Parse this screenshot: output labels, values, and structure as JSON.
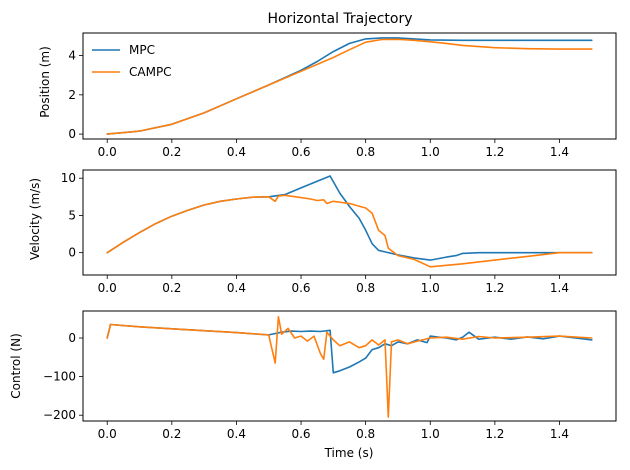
{
  "chart_data": [
    {
      "type": "line",
      "title": "Horizontal Trajectory",
      "xlabel": "",
      "ylabel": "Position (m)",
      "xlim": [
        -0.075,
        1.575
      ],
      "ylim": [
        -0.25,
        5.15
      ],
      "xticks": [
        0.0,
        0.2,
        0.4,
        0.6,
        0.8,
        1.0,
        1.2,
        1.4
      ],
      "xtick_labels": [
        "0.0",
        "0.2",
        "0.4",
        "0.6",
        "0.8",
        "1.0",
        "1.2",
        "1.4"
      ],
      "yticks": [
        0,
        2,
        4
      ],
      "ytick_labels": [
        "0",
        "2",
        "4"
      ],
      "grid": false,
      "legend": {
        "position": "top-left",
        "entries": [
          "MPC",
          "CAMPC"
        ]
      },
      "series": [
        {
          "name": "MPC",
          "color": "#1f77b4",
          "x": [
            0,
            0.1,
            0.2,
            0.3,
            0.4,
            0.5,
            0.6,
            0.65,
            0.7,
            0.75,
            0.8,
            0.85,
            0.9,
            0.95,
            1.0,
            1.1,
            1.2,
            1.3,
            1.4,
            1.5
          ],
          "y": [
            0,
            0.15,
            0.5,
            1.08,
            1.8,
            2.5,
            3.25,
            3.7,
            4.2,
            4.62,
            4.85,
            4.9,
            4.9,
            4.85,
            4.8,
            4.78,
            4.78,
            4.78,
            4.78,
            4.78
          ]
        },
        {
          "name": "CAMPC",
          "color": "#ff7f0e",
          "x": [
            0,
            0.1,
            0.2,
            0.3,
            0.4,
            0.5,
            0.6,
            0.65,
            0.7,
            0.75,
            0.8,
            0.85,
            0.9,
            0.95,
            1.0,
            1.05,
            1.1,
            1.2,
            1.3,
            1.4,
            1.5
          ],
          "y": [
            0,
            0.15,
            0.5,
            1.08,
            1.8,
            2.5,
            3.2,
            3.55,
            3.9,
            4.3,
            4.68,
            4.82,
            4.83,
            4.78,
            4.7,
            4.62,
            4.52,
            4.4,
            4.35,
            4.33,
            4.33
          ]
        }
      ]
    },
    {
      "type": "line",
      "title": "",
      "xlabel": "",
      "ylabel": "Velocity (m/s)",
      "xlim": [
        -0.075,
        1.575
      ],
      "ylim": [
        -3.0,
        11.1
      ],
      "xticks": [
        0.0,
        0.2,
        0.4,
        0.6,
        0.8,
        1.0,
        1.2,
        1.4
      ],
      "xtick_labels": [
        "0.0",
        "0.2",
        "0.4",
        "0.6",
        "0.8",
        "1.0",
        "1.2",
        "1.4"
      ],
      "yticks": [
        0,
        5,
        10
      ],
      "ytick_labels": [
        "0",
        "5",
        "10"
      ],
      "grid": false,
      "series": [
        {
          "name": "MPC",
          "color": "#1f77b4",
          "x": [
            0,
            0.05,
            0.1,
            0.15,
            0.2,
            0.25,
            0.3,
            0.35,
            0.4,
            0.45,
            0.5,
            0.55,
            0.6,
            0.65,
            0.69,
            0.72,
            0.75,
            0.78,
            0.8,
            0.82,
            0.84,
            0.86,
            0.9,
            0.95,
            1.0,
            1.05,
            1.08,
            1.1,
            1.15,
            1.2,
            1.3,
            1.4,
            1.5
          ],
          "y": [
            0,
            1.4,
            2.7,
            3.9,
            4.9,
            5.7,
            6.4,
            6.9,
            7.2,
            7.45,
            7.5,
            7.8,
            8.7,
            9.6,
            10.3,
            8.0,
            6.2,
            4.6,
            3.0,
            1.2,
            0.3,
            0.1,
            -0.3,
            -0.7,
            -1.0,
            -0.6,
            -0.4,
            -0.1,
            0.0,
            0.0,
            0.0,
            0.0,
            0.0
          ]
        },
        {
          "name": "CAMPC",
          "color": "#ff7f0e",
          "x": [
            0,
            0.05,
            0.1,
            0.15,
            0.2,
            0.25,
            0.3,
            0.35,
            0.4,
            0.45,
            0.5,
            0.52,
            0.53,
            0.55,
            0.6,
            0.63,
            0.65,
            0.67,
            0.68,
            0.7,
            0.75,
            0.8,
            0.82,
            0.84,
            0.86,
            0.87,
            0.9,
            0.95,
            1.0,
            1.1,
            1.2,
            1.3,
            1.4,
            1.5
          ],
          "y": [
            0,
            1.4,
            2.7,
            3.9,
            4.9,
            5.7,
            6.4,
            6.9,
            7.2,
            7.45,
            7.5,
            6.9,
            7.6,
            7.7,
            7.4,
            7.2,
            7.0,
            7.1,
            6.6,
            6.9,
            6.6,
            6.0,
            5.3,
            3.0,
            2.3,
            0.6,
            -0.4,
            -0.9,
            -1.9,
            -1.5,
            -1.0,
            -0.5,
            0.0,
            0.0
          ]
        }
      ]
    },
    {
      "type": "line",
      "title": "",
      "xlabel": "Time (s)",
      "ylabel": "Control (N)",
      "xlim": [
        -0.075,
        1.575
      ],
      "ylim": [
        -215,
        70
      ],
      "xticks": [
        0.0,
        0.2,
        0.4,
        0.6,
        0.8,
        1.0,
        1.2,
        1.4
      ],
      "xtick_labels": [
        "0.0",
        "0.2",
        "0.4",
        "0.6",
        "0.8",
        "1.0",
        "1.2",
        "1.4"
      ],
      "yticks": [
        -200,
        -100,
        0
      ],
      "ytick_labels": [
        "−200",
        "−100",
        "0"
      ],
      "grid": false,
      "series": [
        {
          "name": "MPC",
          "color": "#1f77b4",
          "x": [
            0,
            0.01,
            0.1,
            0.2,
            0.3,
            0.4,
            0.5,
            0.54,
            0.57,
            0.6,
            0.63,
            0.66,
            0.69,
            0.7,
            0.72,
            0.75,
            0.78,
            0.8,
            0.82,
            0.84,
            0.86,
            0.88,
            0.9,
            0.93,
            0.96,
            0.99,
            1.0,
            1.02,
            1.05,
            1.08,
            1.1,
            1.12,
            1.15,
            1.2,
            1.25,
            1.3,
            1.35,
            1.4,
            1.45,
            1.5
          ],
          "y": [
            0,
            35,
            29,
            24,
            19,
            14,
            8,
            15,
            18,
            17,
            18,
            17,
            20,
            -90,
            -85,
            -75,
            -62,
            -52,
            -30,
            -25,
            -15,
            -20,
            -10,
            -15,
            -5,
            -12,
            5,
            3,
            0,
            -5,
            2,
            15,
            -3,
            2,
            -3,
            3,
            -2,
            5,
            0,
            -5
          ]
        },
        {
          "name": "CAMPC",
          "color": "#ff7f0e",
          "x": [
            0,
            0.01,
            0.1,
            0.2,
            0.3,
            0.4,
            0.5,
            0.52,
            0.53,
            0.54,
            0.56,
            0.58,
            0.6,
            0.62,
            0.64,
            0.66,
            0.67,
            0.68,
            0.7,
            0.72,
            0.75,
            0.78,
            0.8,
            0.82,
            0.84,
            0.86,
            0.87,
            0.88,
            0.9,
            0.93,
            0.96,
            1.0,
            1.05,
            1.1,
            1.15,
            1.2,
            1.3,
            1.4,
            1.5
          ],
          "y": [
            0,
            35,
            29,
            24,
            19,
            14,
            8,
            -65,
            55,
            10,
            25,
            0,
            5,
            -8,
            5,
            -40,
            -55,
            15,
            -5,
            -20,
            -10,
            -25,
            -20,
            -5,
            -18,
            -5,
            -205,
            -10,
            -5,
            -15,
            -8,
            0,
            2,
            -3,
            4,
            0,
            2,
            5,
            0
          ]
        }
      ]
    }
  ]
}
